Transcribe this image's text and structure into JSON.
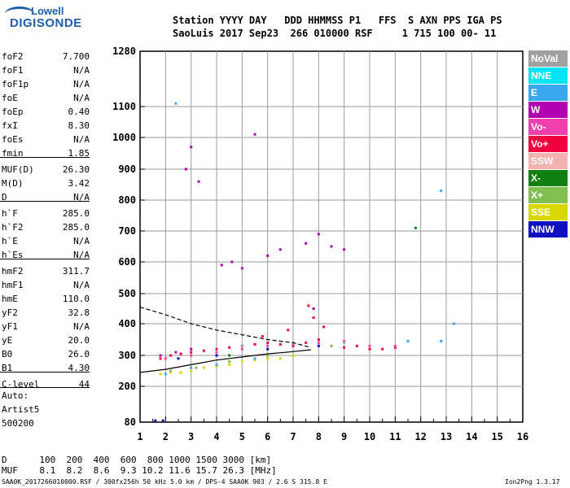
{
  "logo": {
    "top": "Lowell",
    "bottom": "DIGISONDE"
  },
  "header": {
    "line1": "Station YYYY DAY   DDD HHMMSS P1   FFS  S AXN PPS IGA PS",
    "line2": "SaoLuis 2017 Sep23  266 010000 RSF     1 715 100 00- 11"
  },
  "params": [
    {
      "name": "foF2",
      "value": "7.700"
    },
    {
      "name": "foF1",
      "value": "N/A"
    },
    {
      "name": "foF1p",
      "value": "N/A"
    },
    {
      "name": "foE",
      "value": "N/A"
    },
    {
      "name": "foEp",
      "value": "0.40"
    },
    {
      "name": "fxI",
      "value": "8.30"
    },
    {
      "name": "foEs",
      "value": "N/A"
    },
    {
      "name": "fmin",
      "value": "1.85"
    },
    {
      "name": "MUF(D)",
      "value": "26.30"
    },
    {
      "name": "M(D)",
      "value": "3.42"
    },
    {
      "name": "D",
      "value": "N/A"
    },
    {
      "name": "h`F",
      "value": "285.0"
    },
    {
      "name": "h`F2",
      "value": "285.0"
    },
    {
      "name": "h`E",
      "value": "N/A"
    },
    {
      "name": "h`Es",
      "value": "N/A"
    },
    {
      "name": "hmF2",
      "value": "311.7"
    },
    {
      "name": "hmF1",
      "value": "N/A"
    },
    {
      "name": "hmE",
      "value": "110.0"
    },
    {
      "name": "yF2",
      "value": "32.8"
    },
    {
      "name": "yF1",
      "value": "N/A"
    },
    {
      "name": "yE",
      "value": "20.0"
    },
    {
      "name": "B0",
      "value": "26.0"
    },
    {
      "name": "B1",
      "value": "4.30"
    },
    {
      "name": "C-level",
      "value": "44"
    }
  ],
  "autoscale": {
    "label": "Auto:",
    "artist": "Artist5",
    "version": "500200"
  },
  "legend": [
    {
      "label": "NoVal",
      "bg": "#a0a0a0",
      "fg": "#ffffff"
    },
    {
      "label": "NNE",
      "bg": "#00e5f5",
      "fg": "#ffffff"
    },
    {
      "label": "E",
      "bg": "#3aa8f0",
      "fg": "#ffffff"
    },
    {
      "label": "W",
      "bg": "#b000b0",
      "fg": "#ffffff"
    },
    {
      "label": "Vo-",
      "bg": "#f040b0",
      "fg": "#ffffff"
    },
    {
      "label": "Vo+",
      "bg": "#f0003c",
      "fg": "#ffffff"
    },
    {
      "label": "SSW",
      "bg": "#f5b0b0",
      "fg": "#ffffff"
    },
    {
      "label": "X-",
      "bg": "#108010",
      "fg": "#ffffff"
    },
    {
      "label": "X+",
      "bg": "#80c050",
      "fg": "#ffffff"
    },
    {
      "label": "SSE",
      "bg": "#d8d800",
      "fg": "#ffffff"
    },
    {
      "label": "NNW",
      "bg": "#1010c0",
      "fg": "#ffffff"
    }
  ],
  "bottom": {
    "d_line": "D      100  200  400  600  800 1000 1500 3000 [km]",
    "muf_line": "MUF    8.1  8.2  8.6  9.3 10.2 11.6 15.7 26.3 [MHz]",
    "footer_left": "SAA0K_2017266010000.RSF / 300fx256h 50 kHz 5.0 km / DPS-4 SAA0K 903 / 2.6 S 315.8 E",
    "footer_right": "Ion2Png 1.3.17"
  },
  "chart_data": {
    "type": "scatter",
    "title": "",
    "xlabel": "",
    "ylabel": "",
    "xlim": [
      1,
      16
    ],
    "ylim": [
      80,
      1280
    ],
    "x_ticks": [
      "1",
      "2",
      "3",
      "4",
      "5",
      "6",
      "7",
      "8",
      "9",
      "10",
      "11",
      "12",
      "13",
      "14",
      "15",
      "16"
    ],
    "y_ticks": [
      "80",
      "200",
      "300",
      "400",
      "500",
      "600",
      "700",
      "800",
      "900",
      "1000",
      "1100",
      "1280"
    ],
    "y_scale": "reciprocal-like (virtual height, expanded at low heights)",
    "grid": true,
    "series": [
      {
        "name": "Vo+",
        "color": "#f0003c",
        "points": [
          [
            1.8,
            290
          ],
          [
            2.2,
            300
          ],
          [
            2.6,
            305
          ],
          [
            3.0,
            310
          ],
          [
            3.5,
            315
          ],
          [
            4.0,
            320
          ],
          [
            4.5,
            325
          ],
          [
            5.0,
            330
          ],
          [
            5.5,
            335
          ],
          [
            6.0,
            340
          ],
          [
            6.5,
            335
          ],
          [
            7.0,
            330
          ],
          [
            7.5,
            340
          ],
          [
            8.0,
            350
          ],
          [
            8.5,
            330
          ],
          [
            9.0,
            325
          ],
          [
            9.5,
            330
          ],
          [
            10.0,
            320
          ],
          [
            10.5,
            320
          ],
          [
            11.0,
            325
          ],
          [
            7.8,
            420
          ],
          [
            7.6,
            460
          ],
          [
            6.8,
            380
          ],
          [
            8.2,
            390
          ],
          [
            5.8,
            360
          ]
        ]
      },
      {
        "name": "W",
        "color": "#b000b0",
        "points": [
          [
            1.8,
            300
          ],
          [
            2.4,
            310
          ],
          [
            3.0,
            320
          ],
          [
            3.3,
            860
          ],
          [
            4.2,
            590
          ],
          [
            4.6,
            600
          ],
          [
            5.0,
            580
          ],
          [
            6.0,
            620
          ],
          [
            6.5,
            640
          ],
          [
            7.5,
            660
          ],
          [
            8.0,
            690
          ],
          [
            8.5,
            650
          ],
          [
            9.0,
            640
          ],
          [
            7.8,
            450
          ],
          [
            5.5,
            1010
          ],
          [
            3.0,
            970
          ],
          [
            2.8,
            900
          ]
        ]
      },
      {
        "name": "Vo-",
        "color": "#f040b0",
        "points": [
          [
            2.0,
            290
          ],
          [
            3.0,
            300
          ],
          [
            4.0,
            310
          ],
          [
            5.0,
            320
          ],
          [
            6.0,
            330
          ],
          [
            7.0,
            335
          ],
          [
            8.0,
            340
          ],
          [
            9.0,
            345
          ],
          [
            10.0,
            330
          ],
          [
            11.0,
            330
          ]
        ]
      },
      {
        "name": "SSE",
        "color": "#d8d800",
        "points": [
          [
            1.8,
            240
          ],
          [
            2.2,
            245
          ],
          [
            2.6,
            245
          ],
          [
            3.0,
            250
          ],
          [
            3.5,
            260
          ],
          [
            4.0,
            265
          ],
          [
            4.5,
            270
          ],
          [
            5.0,
            280
          ],
          [
            5.5,
            285
          ],
          [
            6.0,
            290
          ],
          [
            6.5,
            290
          ],
          [
            7.0,
            300
          ]
        ]
      },
      {
        "name": "E",
        "color": "#3aa8f0",
        "points": [
          [
            2.0,
            240
          ],
          [
            3.0,
            260
          ],
          [
            4.0,
            270
          ],
          [
            5.5,
            290
          ],
          [
            11.5,
            345
          ],
          [
            12.8,
            345
          ],
          [
            2.4,
            1110
          ],
          [
            12.8,
            830
          ],
          [
            13.3,
            400
          ]
        ]
      },
      {
        "name": "X+",
        "color": "#80c050",
        "points": [
          [
            2.2,
            250
          ],
          [
            3.2,
            260
          ],
          [
            4.5,
            280
          ],
          [
            6.0,
            300
          ],
          [
            8.5,
            330
          ]
        ]
      },
      {
        "name": "NNW",
        "color": "#1010c0",
        "points": [
          [
            2.5,
            290
          ],
          [
            4.0,
            300
          ],
          [
            6.0,
            320
          ],
          [
            8.0,
            330
          ],
          [
            1.6,
            85
          ],
          [
            1.9,
            85
          ]
        ]
      },
      {
        "name": "X-",
        "color": "#108010",
        "points": [
          [
            4.5,
            300
          ],
          [
            11.8,
            710
          ]
        ]
      },
      {
        "name": "NoVal",
        "color": "#a0a0a0",
        "points": [
          [
            5.0,
            330
          ],
          [
            7.0,
            340
          ],
          [
            9.0,
            340
          ]
        ]
      }
    ],
    "profile_curves": [
      {
        "name": "profile-dashed",
        "style": "dashed",
        "points": [
          [
            1.0,
            455
          ],
          [
            2.0,
            430
          ],
          [
            3.0,
            400
          ],
          [
            4.0,
            380
          ],
          [
            5.0,
            365
          ],
          [
            6.0,
            350
          ],
          [
            7.0,
            340
          ],
          [
            7.7,
            325
          ]
        ]
      },
      {
        "name": "profile-solid",
        "style": "solid",
        "points": [
          [
            1.0,
            245
          ],
          [
            2.0,
            255
          ],
          [
            3.0,
            270
          ],
          [
            4.0,
            285
          ],
          [
            5.0,
            295
          ],
          [
            6.0,
            305
          ],
          [
            7.0,
            312
          ],
          [
            7.7,
            318
          ]
        ]
      }
    ]
  }
}
